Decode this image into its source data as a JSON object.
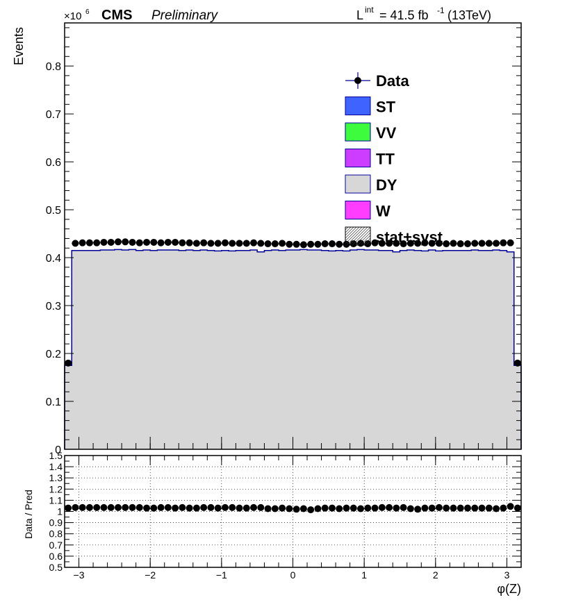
{
  "header": {
    "exponent_base": "×10",
    "exponent_power": "6",
    "cms": "CMS",
    "preliminary": "Preliminary",
    "lumi_L": "L",
    "lumi_int": "int",
    "lumi_value": "= 41.5 fb",
    "lumi_minus1": "-1",
    "lumi_energy": "(13TeV)"
  },
  "colors": {
    "ST": "#3f63ff",
    "VV": "#3dfb3d",
    "TT": "#cc3dff",
    "DY": "#d7d7d7",
    "W": "#ff3dff",
    "line": "#000099",
    "data": "#000000"
  },
  "legend": [
    {
      "label": "Data",
      "kind": "marker"
    },
    {
      "label": "ST",
      "kind": "box",
      "color": "#3f63ff"
    },
    {
      "label": "VV",
      "kind": "box",
      "color": "#3dfb3d"
    },
    {
      "label": "TT",
      "kind": "box",
      "color": "#cc3dff"
    },
    {
      "label": "DY",
      "kind": "box",
      "color": "#d7d7d7"
    },
    {
      "label": "W",
      "kind": "box",
      "color": "#ff3dff"
    },
    {
      "label": "stat+syst",
      "kind": "hatch"
    }
  ],
  "chart_data": [
    {
      "type": "bar",
      "ylabel": "Events",
      "y_scale_note": "×10^6",
      "xlim": [
        -3.2,
        3.2
      ],
      "ylim": [
        0,
        0.89
      ],
      "yticks": [
        "0",
        "0.1",
        "0.2",
        "0.3",
        "0.4",
        "0.5",
        "0.6",
        "0.7",
        "0.8"
      ],
      "ytick_values": [
        0,
        0.1,
        0.2,
        0.3,
        0.4,
        0.5,
        0.6,
        0.7,
        0.8
      ],
      "bin_edges": [
        -3.2,
        -3.1,
        -3.0,
        -2.9,
        -2.8,
        -2.7,
        -2.6,
        -2.5,
        -2.4,
        -2.3,
        -2.2,
        -2.1,
        -2.0,
        -1.9,
        -1.8,
        -1.7,
        -1.6,
        -1.5,
        -1.4,
        -1.3,
        -1.2,
        -1.1,
        -1.0,
        -0.9,
        -0.8,
        -0.7,
        -0.6,
        -0.5,
        -0.4,
        -0.3,
        -0.2,
        -0.1,
        0.0,
        0.1,
        0.2,
        0.3,
        0.4,
        0.5,
        0.6,
        0.7,
        0.8,
        0.9,
        1.0,
        1.1,
        1.2,
        1.3,
        1.4,
        1.5,
        1.6,
        1.7,
        1.8,
        1.9,
        2.0,
        2.1,
        2.2,
        2.3,
        2.4,
        2.5,
        2.6,
        2.7,
        2.8,
        2.9,
        3.0,
        3.1,
        3.2
      ],
      "series": [
        {
          "name": "DY",
          "stacked": true,
          "values": [
            0.175,
            0.415,
            0.415,
            0.415,
            0.415,
            0.416,
            0.416,
            0.417,
            0.416,
            0.417,
            0.415,
            0.416,
            0.415,
            0.416,
            0.416,
            0.416,
            0.415,
            0.416,
            0.415,
            0.416,
            0.415,
            0.414,
            0.415,
            0.414,
            0.415,
            0.415,
            0.416,
            0.412,
            0.415,
            0.416,
            0.415,
            0.416,
            0.416,
            0.417,
            0.416,
            0.416,
            0.415,
            0.414,
            0.415,
            0.414,
            0.416,
            0.417,
            0.416,
            0.416,
            0.415,
            0.415,
            0.412,
            0.415,
            0.416,
            0.415,
            0.414,
            0.416,
            0.414,
            0.415,
            0.415,
            0.415,
            0.415,
            0.416,
            0.415,
            0.415,
            0.416,
            0.415,
            0.412,
            0.175
          ]
        },
        {
          "name": "Data",
          "values": [
            0.18,
            0.43,
            0.431,
            0.431,
            0.431,
            0.432,
            0.432,
            0.433,
            0.433,
            0.432,
            0.431,
            0.432,
            0.432,
            0.431,
            0.432,
            0.432,
            0.431,
            0.431,
            0.43,
            0.431,
            0.43,
            0.43,
            0.431,
            0.43,
            0.43,
            0.43,
            0.431,
            0.43,
            0.429,
            0.429,
            0.43,
            0.428,
            0.428,
            0.427,
            0.428,
            0.428,
            0.429,
            0.429,
            0.428,
            0.428,
            0.429,
            0.43,
            0.429,
            0.431,
            0.43,
            0.43,
            0.43,
            0.429,
            0.43,
            0.43,
            0.431,
            0.43,
            0.43,
            0.429,
            0.43,
            0.429,
            0.429,
            0.43,
            0.43,
            0.43,
            0.43,
            0.431,
            0.431,
            0.18
          ]
        }
      ]
    },
    {
      "type": "scatter",
      "ylabel": "Data / Pred",
      "xlabel": "φ(Z)",
      "xlim": [
        -3.2,
        3.2
      ],
      "ylim": [
        0.5,
        1.5
      ],
      "xticks": [
        "−3",
        "−2",
        "−1",
        "0",
        "1",
        "2",
        "3"
      ],
      "xtick_values": [
        -3,
        -2,
        -1,
        0,
        1,
        2,
        3
      ],
      "yticks": [
        "0.5",
        "0.6",
        "0.7",
        "0.8",
        "0.9",
        "1",
        "1.1",
        "1.2",
        "1.3",
        "1.4",
        "1.5"
      ],
      "ytick_values": [
        0.5,
        0.6,
        0.7,
        0.8,
        0.9,
        1.0,
        1.1,
        1.2,
        1.3,
        1.4,
        1.5
      ],
      "grid": true,
      "series": [
        {
          "name": "Data / Pred",
          "values": [
            1.03,
            1.035,
            1.035,
            1.035,
            1.035,
            1.035,
            1.035,
            1.035,
            1.035,
            1.035,
            1.035,
            1.03,
            1.03,
            1.035,
            1.035,
            1.03,
            1.035,
            1.03,
            1.03,
            1.035,
            1.035,
            1.03,
            1.035,
            1.035,
            1.03,
            1.03,
            1.035,
            1.035,
            1.025,
            1.025,
            1.03,
            1.025,
            1.02,
            1.025,
            1.015,
            1.025,
            1.03,
            1.03,
            1.025,
            1.03,
            1.03,
            1.025,
            1.03,
            1.03,
            1.035,
            1.035,
            1.03,
            1.035,
            1.025,
            1.02,
            1.03,
            1.03,
            1.035,
            1.03,
            1.03,
            1.03,
            1.03,
            1.03,
            1.03,
            1.03,
            1.025,
            1.03,
            1.045,
            1.03
          ]
        }
      ]
    }
  ]
}
